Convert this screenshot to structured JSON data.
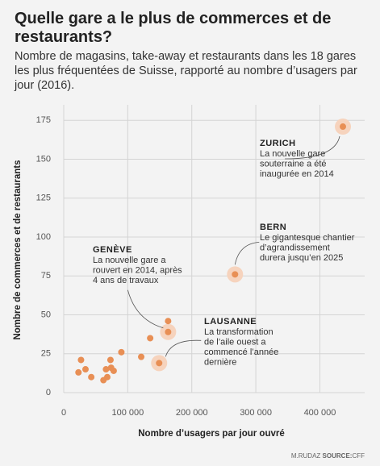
{
  "chart_data": {
    "type": "scatter",
    "title": "Quelle gare a le plus de commerces et de restaurants?",
    "subtitle": "Nombre de magasins, take-away et restaurants dans les 18 gares les plus fréquentées de Suisse, rapporté au nombre d’usagers par jour (2016).",
    "x_label": "Nombre d’usagers par jour ouvré",
    "y_label": "Nombre de commerces et de restaurants",
    "x": [
      436000,
      267500,
      149000,
      163000,
      163000,
      135000,
      121000,
      90000,
      73000,
      78000,
      74000,
      68000,
      62000,
      43000,
      34000,
      27000,
      23000,
      66000
    ],
    "y": [
      171,
      76,
      19,
      39,
      46,
      35,
      23,
      26,
      21,
      14,
      16,
      10,
      8,
      10,
      15,
      21,
      13,
      15
    ],
    "color": "#e88f55",
    "highlight_color": "#f6d3bd",
    "xlim": [
      0,
      470000
    ],
    "ylim": [
      0,
      185
    ],
    "xticks": [
      0,
      {
        "value": 100000,
        "label": "100 000"
      },
      {
        "value": 200000,
        "label": "200 000"
      },
      {
        "value": 300000,
        "label": "300 000"
      },
      {
        "value": 400000,
        "label": "400 000"
      }
    ],
    "yticks": [
      0,
      25,
      50,
      75,
      100,
      125,
      150,
      175
    ],
    "grid": true,
    "annotations": [
      {
        "point": 0,
        "name": "ZURICH",
        "lines": [
          "La nouvelle gare",
          "souterraine a été",
          "inaugurée en 2014"
        ]
      },
      {
        "point": 1,
        "name": "BERN",
        "lines": [
          "Le gigantesque chantier",
          "d’agrandissement",
          "durera jusqu’en 2025"
        ]
      },
      {
        "point": 3,
        "name": "GENÈVE",
        "lines": [
          "La nouvelle gare a",
          "rouvert en 2014, après",
          "4 ans de travaux"
        ]
      },
      {
        "point": 2,
        "name": "LAUSANNE",
        "lines": [
          "La transformation",
          "de l’aile ouest a",
          "commencé l’année",
          "dernière"
        ]
      }
    ],
    "credit": "M.RUDAZ",
    "source_label": "SOURCE:",
    "source": "CFF"
  }
}
